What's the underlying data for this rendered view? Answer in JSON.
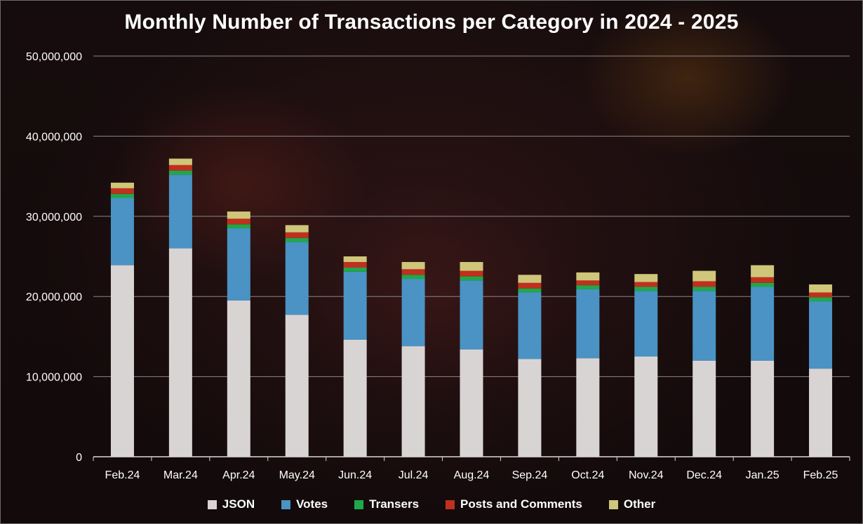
{
  "chart_data": {
    "type": "bar",
    "stacked": true,
    "title": "Monthly Number of Transactions per Category in 2024 - 2025",
    "xlabel": "",
    "ylabel": "",
    "ylim": [
      0,
      50000000
    ],
    "yticks": [
      0,
      10000000,
      20000000,
      30000000,
      40000000,
      50000000
    ],
    "ytick_labels": [
      "0",
      "10,000,000",
      "20,000,000",
      "30,000,000",
      "40,000,000",
      "50,000,000"
    ],
    "grid": true,
    "legend_position": "bottom",
    "categories": [
      "Feb.24",
      "Mar.24",
      "Apr.24",
      "May.24",
      "Jun.24",
      "Jul.24",
      "Aug.24",
      "Sep.24",
      "Oct.24",
      "Nov.24",
      "Dec.24",
      "Jan.25",
      "Feb.25"
    ],
    "series": [
      {
        "name": "JSON",
        "color": "#d9d4d4",
        "values": [
          23900000,
          26000000,
          19500000,
          17700000,
          14600000,
          13800000,
          13400000,
          12200000,
          12300000,
          12500000,
          12000000,
          12000000,
          11000000
        ]
      },
      {
        "name": "Votes",
        "color": "#4a93c4",
        "values": [
          8400000,
          9200000,
          9000000,
          9100000,
          8500000,
          8400000,
          8600000,
          8300000,
          8600000,
          8200000,
          8700000,
          9200000,
          8400000
        ]
      },
      {
        "name": "Transers",
        "color": "#1fa84a",
        "values": [
          500000,
          500000,
          500000,
          500000,
          500000,
          500000,
          500000,
          500000,
          500000,
          500000,
          500000,
          500000,
          500000
        ]
      },
      {
        "name": "Posts and Comments",
        "color": "#c0301e",
        "values": [
          700000,
          700000,
          700000,
          700000,
          700000,
          700000,
          700000,
          700000,
          600000,
          600000,
          700000,
          700000,
          600000
        ]
      },
      {
        "name": "Other",
        "color": "#cfc67a",
        "values": [
          700000,
          800000,
          900000,
          900000,
          700000,
          900000,
          1100000,
          1000000,
          1000000,
          1000000,
          1300000,
          1500000,
          1000000
        ]
      }
    ]
  }
}
